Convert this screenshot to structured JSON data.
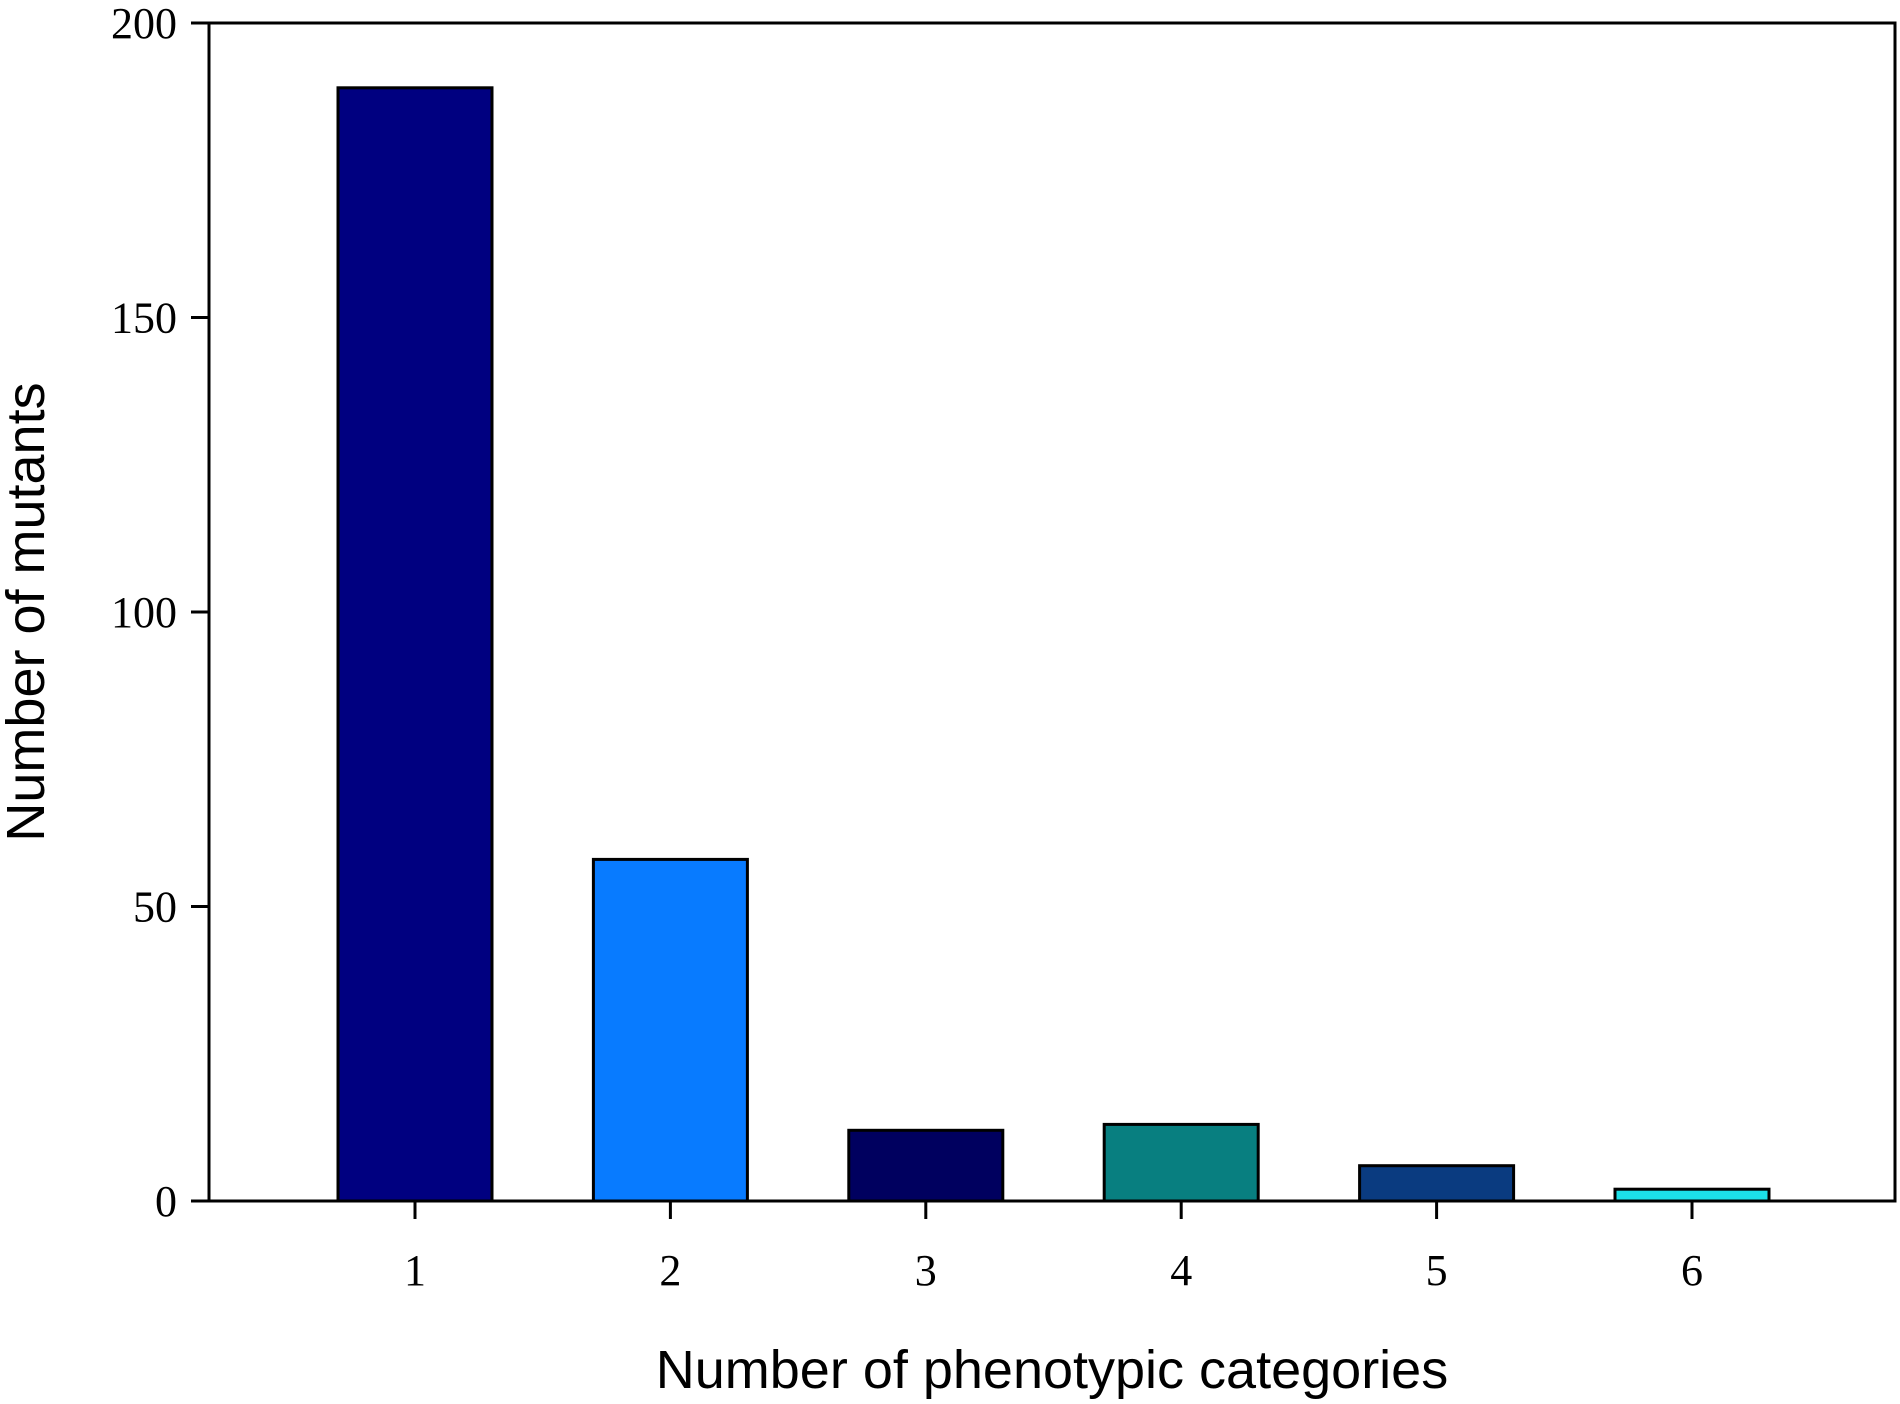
{
  "chart_data": {
    "type": "bar",
    "title": "",
    "xlabel": "Number of phenotypic categories",
    "ylabel": "Number of mutants",
    "categories": [
      "1",
      "2",
      "3",
      "4",
      "5",
      "6"
    ],
    "values": [
      189,
      58,
      12,
      13,
      6,
      2
    ],
    "colors": [
      "#000080",
      "#087bff",
      "#00005f",
      "#087f80",
      "#0a3b80",
      "#1ce0e8"
    ],
    "ylim": [
      0,
      200
    ],
    "yticks": [
      0,
      50,
      100,
      150,
      200
    ],
    "ytick_labels": [
      "0",
      "50",
      "100",
      "150",
      "200"
    ],
    "grid": false,
    "legend": "none"
  }
}
